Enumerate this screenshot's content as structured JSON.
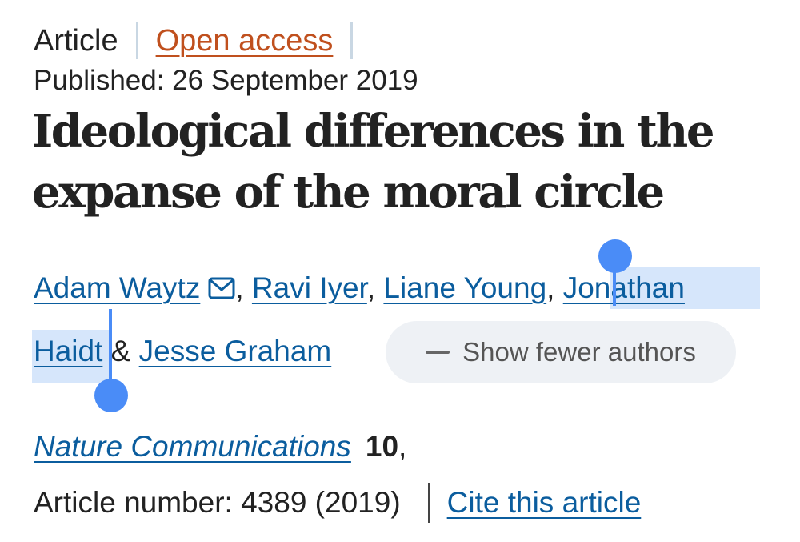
{
  "meta": {
    "article_type": "Article",
    "open_access": "Open access",
    "published": "Published: 26 September 2019"
  },
  "title": "Ideological differences in the expanse of the moral circle",
  "authors": {
    "a1": "Adam Waytz",
    "a2": "Ravi Iyer",
    "a3": "Liane Young",
    "a4_first": "Jonathan",
    "a4_last": "Haidt",
    "a5": "Jesse Graham",
    "comma": ",",
    "amp": "&",
    "show_fewer": "Show fewer authors"
  },
  "citation": {
    "journal": "Nature Communications",
    "volume": "10",
    "volume_sep": ",",
    "article_number": "Article number: 4389 (2019)",
    "cite": "Cite this article"
  },
  "colors": {
    "link": "#0b5d9e",
    "open_access": "#c0501e",
    "selection": "#d6e6fb",
    "handle": "#4a8cf7"
  }
}
